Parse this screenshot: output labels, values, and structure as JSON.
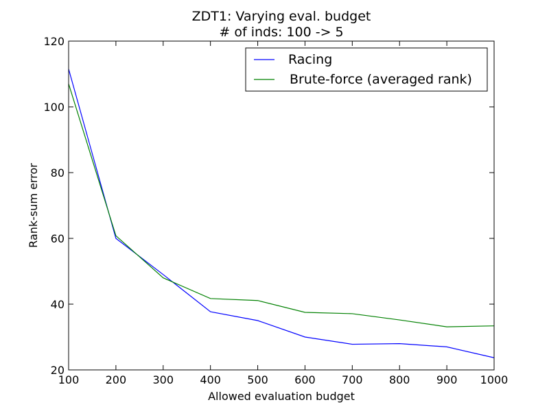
{
  "chart_data": {
    "type": "line",
    "title": "ZDT1: Varying eval. budget",
    "subtitle": "# of inds: 100 -> 5",
    "xlabel": "Allowed evaluation budget",
    "ylabel": "Rank-sum error",
    "xlim": [
      100,
      1000
    ],
    "ylim": [
      20,
      120
    ],
    "xticks": [
      100,
      200,
      300,
      400,
      500,
      600,
      700,
      800,
      900,
      1000
    ],
    "yticks": [
      20,
      40,
      60,
      80,
      100,
      120
    ],
    "grid": false,
    "legend_position": "top-right",
    "x": [
      100,
      200,
      300,
      400,
      500,
      600,
      700,
      800,
      900,
      1000
    ],
    "series": [
      {
        "name": "Racing",
        "color": "#0000ff",
        "values": [
          111.5,
          60.0,
          49.0,
          37.7,
          35.0,
          30.0,
          27.8,
          28.0,
          27.0,
          23.7
        ]
      },
      {
        "name": "Brute-force (averaged rank)",
        "color": "#008000",
        "values": [
          107.0,
          60.8,
          48.0,
          41.7,
          41.1,
          37.5,
          37.1,
          35.2,
          33.1,
          33.4
        ]
      }
    ]
  }
}
